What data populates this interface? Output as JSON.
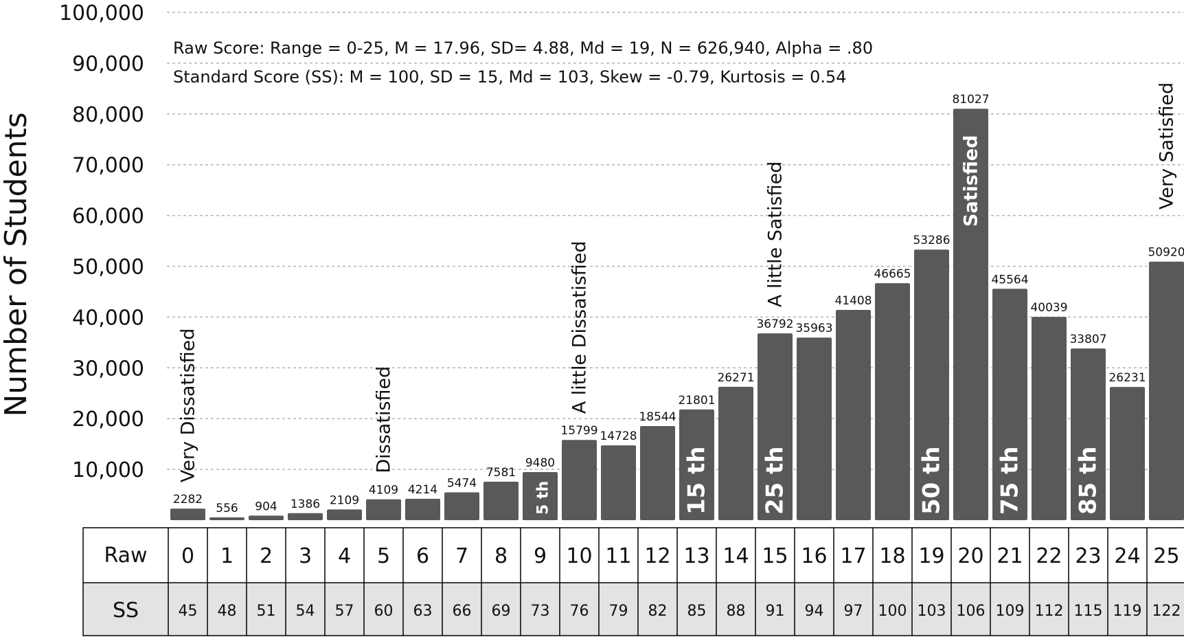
{
  "chart_data": {
    "type": "bar",
    "ylabel": "Number of Students",
    "ylim": [
      0,
      100000
    ],
    "yticks": [
      10000,
      20000,
      30000,
      40000,
      50000,
      60000,
      70000,
      80000,
      90000,
      100000
    ],
    "ytick_labels": [
      "10,000",
      "20,000",
      "30,000",
      "40,000",
      "50,000",
      "60,000",
      "70,000",
      "80,000",
      "90,000",
      "100,000"
    ],
    "grid": true,
    "categories": [
      "0",
      "1",
      "2",
      "3",
      "4",
      "5",
      "6",
      "7",
      "8",
      "9",
      "10",
      "11",
      "12",
      "13",
      "14",
      "15",
      "16",
      "17",
      "18",
      "19",
      "20",
      "21",
      "22",
      "23",
      "24",
      "25"
    ],
    "values": [
      2282,
      556,
      904,
      1386,
      2109,
      4109,
      4214,
      5474,
      7581,
      9480,
      15799,
      14728,
      18544,
      21801,
      26271,
      36792,
      35963,
      41408,
      46665,
      53286,
      81027,
      45564,
      40039,
      33807,
      26231,
      50920
    ],
    "value_labels": [
      "2282",
      "556",
      "904",
      "1386",
      "2109",
      "4109",
      "4214",
      "5474",
      "7581",
      "9480",
      "15799",
      "14728",
      "18544",
      "21801",
      "26271",
      "36792",
      "35963",
      "41408",
      "46665",
      "53286",
      "81027",
      "45564",
      "40039",
      "33807",
      "26231",
      "50920"
    ],
    "stats": {
      "raw_line": "Raw Score: Range = 0-25, M = 17.96, SD= 4.88, Md = 19, N = 626,940, Alpha = .80",
      "ss_line": "Standard Score (SS): M = 100, SD = 15, Md = 103, Skew = -0.79, Kurtosis = 0.54"
    },
    "category_annotations": [
      {
        "text": "Very Dissatisfied",
        "index": 0
      },
      {
        "text": "Dissatisfied",
        "index": 5
      },
      {
        "text": "A little Dissatisfied",
        "index": 10
      },
      {
        "text": "A little Satisfied",
        "index": 15
      },
      {
        "text": "Satisfied",
        "index": 20
      },
      {
        "text": "Very Satisfied",
        "index": 25
      }
    ],
    "percentile_annotations": [
      {
        "text": "5 th",
        "index": 9
      },
      {
        "text": "15 th",
        "index": 13
      },
      {
        "text": "25 th",
        "index": 15
      },
      {
        "text": "50 th",
        "index": 19
      },
      {
        "text": "75 th",
        "index": 21
      },
      {
        "text": "85 th",
        "index": 23
      }
    ],
    "table": {
      "raw_header": "Raw",
      "ss_header": "SS",
      "raw": [
        "0",
        "1",
        "2",
        "3",
        "4",
        "5",
        "6",
        "7",
        "8",
        "9",
        "10",
        "11",
        "12",
        "13",
        "14",
        "15",
        "16",
        "17",
        "18",
        "19",
        "20",
        "21",
        "22",
        "23",
        "24",
        "25"
      ],
      "ss": [
        "45",
        "48",
        "51",
        "54",
        "57",
        "60",
        "63",
        "66",
        "69",
        "73",
        "76",
        "79",
        "82",
        "85",
        "88",
        "91",
        "94",
        "97",
        "100",
        "103",
        "106",
        "109",
        "112",
        "115",
        "119",
        "122"
      ]
    },
    "colors": {
      "bar": "#595959",
      "grid": "#b3b3b3",
      "ss_row": "#e3e3e3",
      "table_border": "#000000"
    }
  }
}
